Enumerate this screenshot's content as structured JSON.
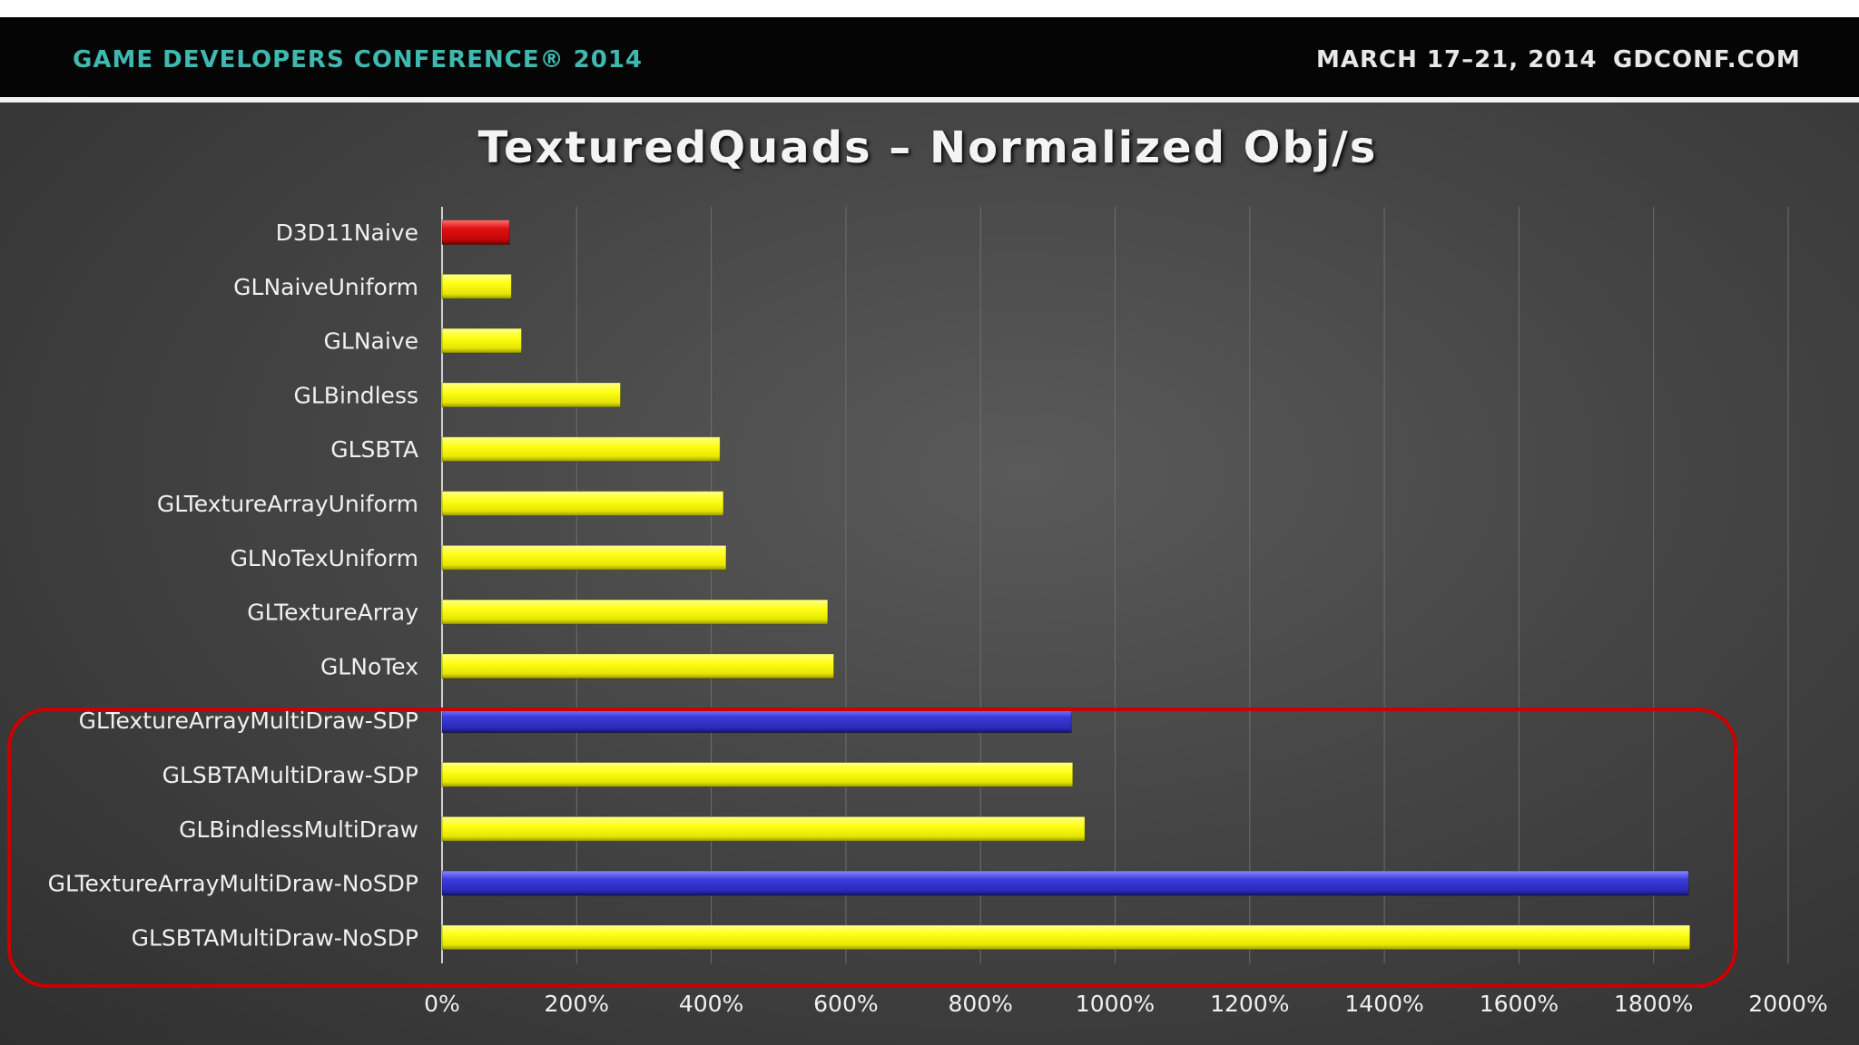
{
  "header": {
    "conference": "GAME DEVELOPERS CONFERENCE® 2014",
    "dates": "MARCH 17–21, 2014",
    "site": "GDCONF.COM"
  },
  "colors": {
    "yellow_bar": "#ffff1a",
    "blue_bar": "#3b3bdc",
    "red_bar": "#e01010",
    "highlight_box": "#cc0000"
  },
  "chart_data": {
    "type": "bar",
    "orientation": "horizontal",
    "title": "TexturedQuads – Normalized Obj/s",
    "xlabel": "",
    "ylabel": "",
    "xlim": [
      0,
      2000
    ],
    "x_ticks": [
      "0%",
      "200%",
      "400%",
      "600%",
      "800%",
      "1000%",
      "1200%",
      "1400%",
      "1600%",
      "1800%",
      "2000%"
    ],
    "grid": true,
    "categories": [
      "D3D11Naive",
      "GLNaiveUniform",
      "GLNaive",
      "GLBindless",
      "GLSBTA",
      "GLTextureArrayUniform",
      "GLNoTexUniform",
      "GLTextureArray",
      "GLNoTex",
      "GLTextureArrayMultiDraw-SDP",
      "GLSBTAMultiDraw-SDP",
      "GLBindlessMultiDraw",
      "GLTextureArrayMultiDraw-NoSDP",
      "GLSBTAMultiDraw-NoSDP"
    ],
    "values": [
      100,
      103,
      118,
      265,
      413,
      418,
      422,
      573,
      582,
      935,
      937,
      955,
      1852,
      1854
    ],
    "bar_colors": [
      "red",
      "yellow",
      "yellow",
      "yellow",
      "yellow",
      "yellow",
      "yellow",
      "yellow",
      "yellow",
      "blue",
      "yellow",
      "yellow",
      "blue",
      "yellow"
    ],
    "highlighted_categories": [
      "GLTextureArrayMultiDraw-SDP",
      "GLSBTAMultiDraw-SDP",
      "GLBindlessMultiDraw",
      "GLTextureArrayMultiDraw-NoSDP",
      "GLSBTAMultiDraw-NoSDP"
    ]
  }
}
